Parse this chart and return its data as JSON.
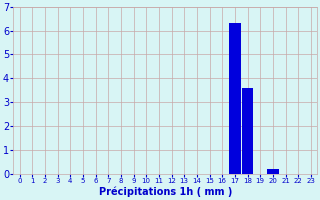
{
  "title": "",
  "xlabel": "Précipitations 1h ( mm )",
  "hours": [
    0,
    1,
    2,
    3,
    4,
    5,
    6,
    7,
    8,
    9,
    10,
    11,
    12,
    13,
    14,
    15,
    16,
    17,
    18,
    19,
    20,
    21,
    22,
    23
  ],
  "values": [
    0,
    0,
    0,
    0,
    0,
    0,
    0,
    0,
    0,
    0,
    0,
    0,
    0,
    0,
    0,
    0,
    0,
    6.3,
    3.6,
    0,
    0.2,
    0,
    0,
    0
  ],
  "bar_color": "#0000dd",
  "background_color": "#d8f5f5",
  "grid_color": "#c8a8a8",
  "text_color": "#0000cc",
  "ylim": [
    0,
    7
  ],
  "yticks": [
    0,
    1,
    2,
    3,
    4,
    5,
    6,
    7
  ],
  "xlim": [
    -0.5,
    23.5
  ],
  "bar_width": 0.9,
  "xlabel_fontsize": 7,
  "xtick_fontsize": 5,
  "ytick_fontsize": 7
}
